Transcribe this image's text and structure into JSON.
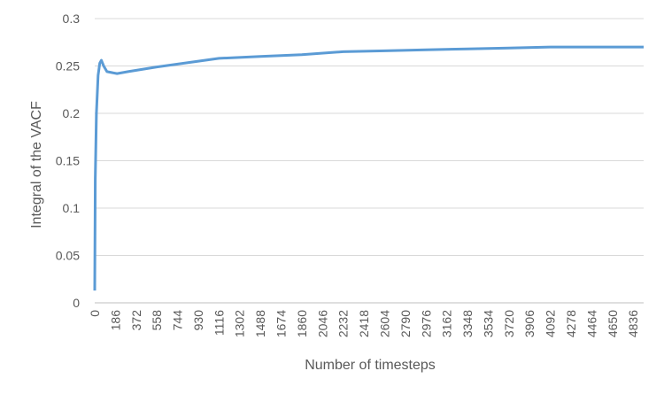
{
  "chart_data": {
    "type": "line",
    "x_label": "Number of timesteps",
    "y_label": "Integral of the VACF",
    "x": [
      0,
      5,
      15,
      30,
      45,
      60,
      80,
      110,
      200,
      300,
      558,
      744,
      930,
      1116,
      1488,
      1860,
      2232,
      2604,
      2976,
      3348,
      3720,
      4092,
      4464,
      4930
    ],
    "series": [
      {
        "name": "Integral of the VACF",
        "color": "#5b9bd5",
        "values": [
          0.013,
          0.13,
          0.2,
          0.24,
          0.253,
          0.256,
          0.25,
          0.244,
          0.242,
          0.244,
          0.249,
          0.252,
          0.255,
          0.258,
          0.26,
          0.262,
          0.265,
          0.266,
          0.267,
          0.268,
          0.269,
          0.27,
          0.27,
          0.27
        ]
      }
    ],
    "xlim": [
      0,
      4930
    ],
    "xticks": [
      0,
      186,
      372,
      558,
      744,
      930,
      1116,
      1302,
      1488,
      1674,
      1860,
      2046,
      2232,
      2418,
      2604,
      2790,
      2976,
      3162,
      3348,
      3534,
      3720,
      3906,
      4092,
      4278,
      4464,
      4650,
      4836
    ],
    "ylim": [
      0,
      0.3
    ],
    "yticks": [
      0,
      0.05,
      0.1,
      0.15,
      0.2,
      0.25,
      0.3
    ],
    "grid": true
  }
}
